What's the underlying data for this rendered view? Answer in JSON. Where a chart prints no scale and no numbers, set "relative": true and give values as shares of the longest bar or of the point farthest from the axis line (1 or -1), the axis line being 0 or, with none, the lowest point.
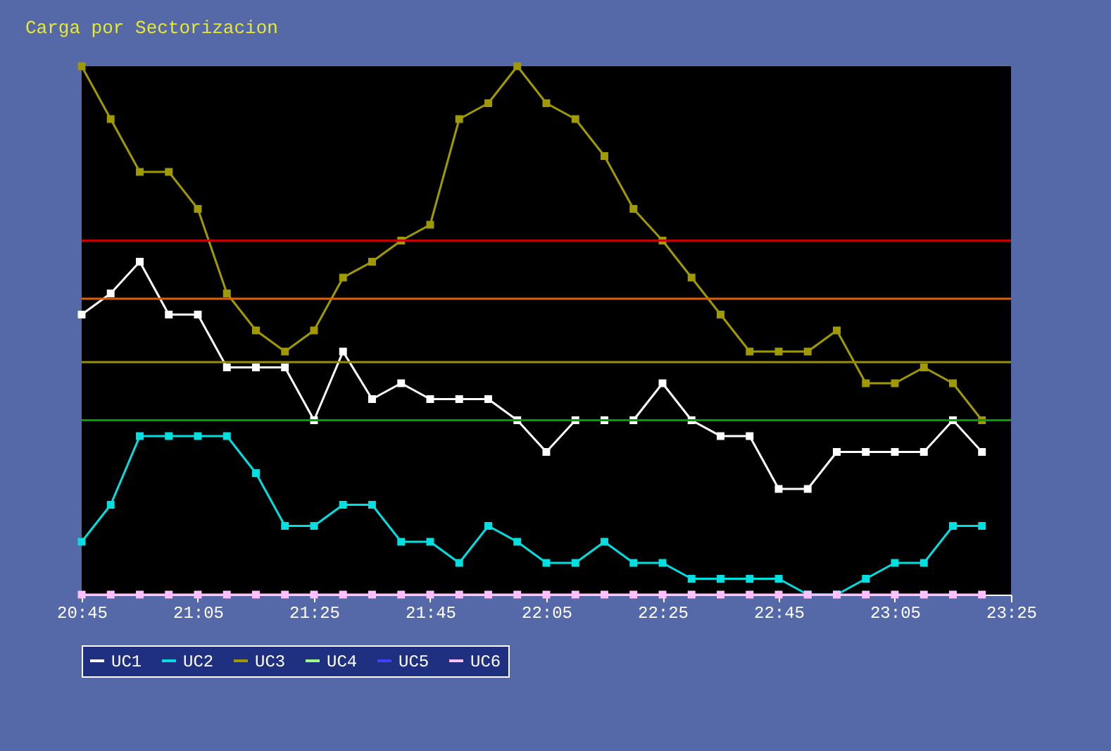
{
  "chart_data": {
    "type": "line",
    "title": "Carga por Sectorizacion",
    "relative": true,
    "marker": "square",
    "legend": "bottom",
    "grid": false,
    "x": [
      20.75,
      20.8333,
      20.9167,
      21,
      21.0833,
      21.1667,
      21.25,
      21.3333,
      21.4167,
      21.5,
      21.5833,
      21.6667,
      21.75,
      21.8333,
      21.9167,
      22,
      22.0833,
      22.1667,
      22.25,
      22.3333,
      22.4167,
      22.5,
      22.5833,
      22.6667,
      22.75,
      22.8333,
      22.9167,
      23,
      23.0833,
      23.1667,
      23.25,
      23.3333
    ],
    "xlim": [
      20.75,
      23.4167
    ],
    "xticks": [
      {
        "value": 20.75,
        "label": "20:45"
      },
      {
        "value": 21.0833,
        "label": "21:05"
      },
      {
        "value": 21.4167,
        "label": "21:25"
      },
      {
        "value": 21.75,
        "label": "21:45"
      },
      {
        "value": 22.0833,
        "label": "22:05"
      },
      {
        "value": 22.4167,
        "label": "22:25"
      },
      {
        "value": 22.75,
        "label": "22:45"
      },
      {
        "value": 23.0833,
        "label": "23:05"
      },
      {
        "value": 23.4167,
        "label": "23:25"
      }
    ],
    "series": [
      {
        "name": "UC1",
        "color": "#ffffff",
        "values": [
          0.53,
          0.57,
          0.63,
          0.53,
          0.53,
          0.43,
          0.43,
          0.43,
          0.33,
          0.46,
          0.37,
          0.4,
          0.37,
          0.37,
          0.37,
          0.33,
          0.27,
          0.33,
          0.33,
          0.33,
          0.4,
          0.33,
          0.3,
          0.3,
          0.2,
          0.2,
          0.27,
          0.27,
          0.27,
          0.27,
          0.33,
          0.27
        ]
      },
      {
        "name": "UC2",
        "color": "#00e0e0",
        "values": [
          0.1,
          0.17,
          0.3,
          0.3,
          0.3,
          0.3,
          0.23,
          0.13,
          0.13,
          0.17,
          0.17,
          0.1,
          0.1,
          0.06,
          0.13,
          0.1,
          0.06,
          0.06,
          0.1,
          0.06,
          0.06,
          0.03,
          0.03,
          0.03,
          0.03,
          0,
          0,
          0.03,
          0.06,
          0.06,
          0.13,
          0.13
        ]
      },
      {
        "name": "UC3",
        "color": "#a09a00",
        "values": [
          1.0,
          0.9,
          0.8,
          0.8,
          0.73,
          0.57,
          0.5,
          0.46,
          0.5,
          0.6,
          0.63,
          0.67,
          0.7,
          0.9,
          0.93,
          1.0,
          0.93,
          0.9,
          0.83,
          0.73,
          0.67,
          0.6,
          0.53,
          0.46,
          0.46,
          0.46,
          0.5,
          0.4,
          0.4,
          0.43,
          0.4,
          0.33
        ]
      },
      {
        "name": "UC4",
        "color": "#a0ff80",
        "values": [
          null,
          null,
          null,
          null,
          null,
          null,
          null,
          null,
          null,
          null,
          null,
          null,
          null,
          null,
          null,
          null,
          null,
          null,
          null,
          null,
          null,
          null,
          null,
          null,
          null,
          null,
          null,
          null,
          null,
          null,
          null,
          null
        ]
      },
      {
        "name": "UC5",
        "color": "#4040ff",
        "values": [
          null,
          null,
          null,
          null,
          null,
          null,
          null,
          null,
          null,
          null,
          null,
          null,
          null,
          null,
          null,
          null,
          null,
          null,
          null,
          null,
          null,
          null,
          null,
          null,
          null,
          null,
          null,
          null,
          null,
          null,
          null,
          null
        ]
      },
      {
        "name": "UC6",
        "color": "#ffc0ff",
        "values": [
          0,
          0,
          0,
          0,
          0,
          0,
          0,
          0,
          0,
          0,
          0,
          0,
          0,
          0,
          0,
          0,
          0,
          0,
          0,
          0,
          0,
          0,
          0,
          0,
          0,
          0,
          0,
          0,
          0,
          0,
          0,
          0
        ]
      }
    ],
    "ref_lines": [
      {
        "axis": "y",
        "value": 0.67,
        "color": "#c00000"
      },
      {
        "axis": "y",
        "value": 0.56,
        "color": "#e06000"
      },
      {
        "axis": "y",
        "value": 0.44,
        "color": "#9a9000"
      },
      {
        "axis": "y",
        "value": 0.33,
        "color": "#00a000"
      }
    ]
  }
}
